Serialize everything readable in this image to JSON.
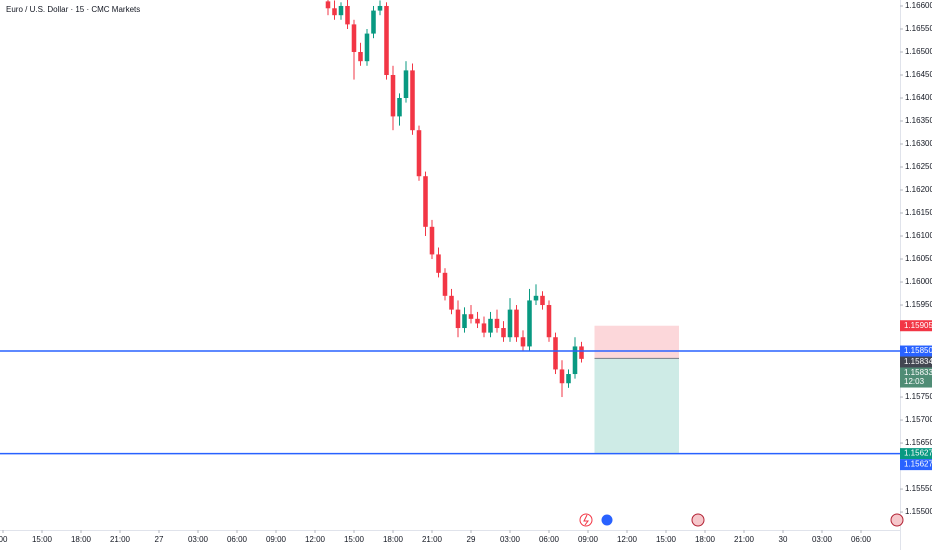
{
  "chart_data": {
    "type": "candlestick",
    "title": "Euro / U.S. Dollar · 15 · CMC Markets",
    "up_color": "#089981",
    "down_color": "#f23645",
    "x": [
      37,
      37.5,
      38,
      38.5,
      39,
      39.5,
      40,
      40.5,
      41,
      41.5,
      42,
      42.5,
      43,
      43.5,
      44,
      44.5,
      45,
      45.5,
      46,
      46.5,
      47,
      47.5,
      48,
      48.5,
      49,
      49.5,
      50,
      50.5,
      51,
      51.5,
      52,
      52.5,
      53,
      53.5,
      54,
      54.5,
      55,
      55.5,
      56,
      56.5
    ],
    "open": [
      1.1661,
      1.16595,
      1.1658,
      1.166,
      1.1656,
      1.165,
      1.1648,
      1.1654,
      1.1659,
      1.166,
      1.1645,
      1.1636,
      1.164,
      1.1646,
      1.1633,
      1.1623,
      1.1612,
      1.1606,
      1.1602,
      1.1597,
      1.1594,
      1.159,
      1.1593,
      1.1592,
      1.1591,
      1.1589,
      1.1592,
      1.159,
      1.1588,
      1.1594,
      1.1588,
      1.1586,
      1.1596,
      1.1597,
      1.1595,
      1.1588,
      1.1581,
      1.1578,
      1.158,
      1.1586
    ],
    "high": [
      1.16625,
      1.16612,
      1.16608,
      1.16615,
      1.1657,
      1.1652,
      1.1655,
      1.166,
      1.16612,
      1.16608,
      1.1647,
      1.1641,
      1.1648,
      1.16475,
      1.1634,
      1.1624,
      1.16135,
      1.16075,
      1.1603,
      1.15985,
      1.1596,
      1.15945,
      1.1595,
      1.15935,
      1.15925,
      1.15935,
      1.1594,
      1.15915,
      1.15965,
      1.1595,
      1.15895,
      1.15985,
      1.15995,
      1.1598,
      1.1596,
      1.1589,
      1.1583,
      1.1581,
      1.1588,
      1.1587
    ],
    "low": [
      1.1658,
      1.1657,
      1.1657,
      1.1655,
      1.1644,
      1.1647,
      1.1647,
      1.1653,
      1.1658,
      1.1644,
      1.1633,
      1.1634,
      1.1639,
      1.1632,
      1.1622,
      1.161,
      1.1605,
      1.1601,
      1.1596,
      1.1593,
      1.1588,
      1.1589,
      1.1591,
      1.159,
      1.1588,
      1.1588,
      1.1589,
      1.1587,
      1.1587,
      1.1587,
      1.1585,
      1.1585,
      1.1595,
      1.1594,
      1.1587,
      1.158,
      1.1575,
      1.1577,
      1.1579,
      1.15825
    ],
    "close": [
      1.16595,
      1.1658,
      1.166,
      1.1656,
      1.165,
      1.1648,
      1.1654,
      1.1659,
      1.166,
      1.1645,
      1.1636,
      1.164,
      1.1646,
      1.1633,
      1.1623,
      1.1612,
      1.1606,
      1.1602,
      1.1597,
      1.1594,
      1.159,
      1.1593,
      1.1592,
      1.1591,
      1.1589,
      1.1592,
      1.159,
      1.1588,
      1.1594,
      1.1588,
      1.1586,
      1.1596,
      1.1597,
      1.1595,
      1.1588,
      1.1581,
      1.1578,
      1.158,
      1.1586,
      1.15833
    ],
    "xlim": [
      11.77,
      81
    ],
    "ylim": [
      1.15461,
      1.16613
    ],
    "xticks": [
      {
        "value": 12,
        "label": "00"
      },
      {
        "value": 15,
        "label": "15:00"
      },
      {
        "value": 18,
        "label": "18:00"
      },
      {
        "value": 21,
        "label": "21:00"
      },
      {
        "value": 24,
        "label": "27"
      },
      {
        "value": 27,
        "label": "03:00"
      },
      {
        "value": 30,
        "label": "06:00"
      },
      {
        "value": 33,
        "label": "09:00"
      },
      {
        "value": 36,
        "label": "12:00"
      },
      {
        "value": 39,
        "label": "15:00"
      },
      {
        "value": 42,
        "label": "18:00"
      },
      {
        "value": 45,
        "label": "21:00"
      },
      {
        "value": 48,
        "label": "29"
      },
      {
        "value": 51,
        "label": "03:00"
      },
      {
        "value": 54,
        "label": "06:00"
      },
      {
        "value": 57,
        "label": "09:00"
      },
      {
        "value": 60,
        "label": "12:00"
      },
      {
        "value": 63,
        "label": "15:00"
      },
      {
        "value": 66,
        "label": "18:00"
      },
      {
        "value": 69,
        "label": "21:00"
      },
      {
        "value": 72,
        "label": "30"
      },
      {
        "value": 75,
        "label": "03:00"
      },
      {
        "value": 78,
        "label": "06:00"
      }
    ],
    "yticks": [
      {
        "value": 1.166,
        "label": "1.16600"
      },
      {
        "value": 1.1655,
        "label": "1.16550"
      },
      {
        "value": 1.165,
        "label": "1.16500"
      },
      {
        "value": 1.1645,
        "label": "1.16450"
      },
      {
        "value": 1.164,
        "label": "1.16400"
      },
      {
        "value": 1.1635,
        "label": "1.16350"
      },
      {
        "value": 1.163,
        "label": "1.16300"
      },
      {
        "value": 1.1625,
        "label": "1.16250"
      },
      {
        "value": 1.162,
        "label": "1.16200"
      },
      {
        "value": 1.1615,
        "label": "1.16150"
      },
      {
        "value": 1.161,
        "label": "1.16100"
      },
      {
        "value": 1.1605,
        "label": "1.16050"
      },
      {
        "value": 1.16,
        "label": "1.16000"
      },
      {
        "value": 1.1595,
        "label": "1.15950"
      },
      {
        "value": 1.1575,
        "label": "1.15750"
      },
      {
        "value": 1.157,
        "label": "1.15700"
      },
      {
        "value": 1.1565,
        "label": "1.15650"
      },
      {
        "value": 1.1555,
        "label": "1.15550"
      },
      {
        "value": 1.155,
        "label": "1.15500"
      }
    ],
    "hlines": [
      {
        "value": 1.1585,
        "color": "#2962ff"
      },
      {
        "value": 1.15627,
        "color": "#2962ff"
      }
    ],
    "position": {
      "x_start": 57.5,
      "x_end": 64,
      "stop": 1.15905,
      "entry": 1.15834,
      "target": 1.15627
    },
    "price_labels": [
      {
        "value": 1.15905,
        "label": "1.15905",
        "color": "#f23645"
      },
      {
        "value": 1.1585,
        "label": "1.15850",
        "color": "#2962ff"
      },
      {
        "value": 1.15834,
        "label": "1.15834",
        "color": "#434651"
      },
      {
        "value": 1.15833,
        "label": "1.15833",
        "color": "#4f8c75",
        "countdown": "12:03"
      },
      {
        "value": 1.15627,
        "label": "1.15627",
        "color": "#089981"
      },
      {
        "value": 1.15627,
        "label": "1.15627",
        "color": "#2962ff"
      }
    ]
  }
}
